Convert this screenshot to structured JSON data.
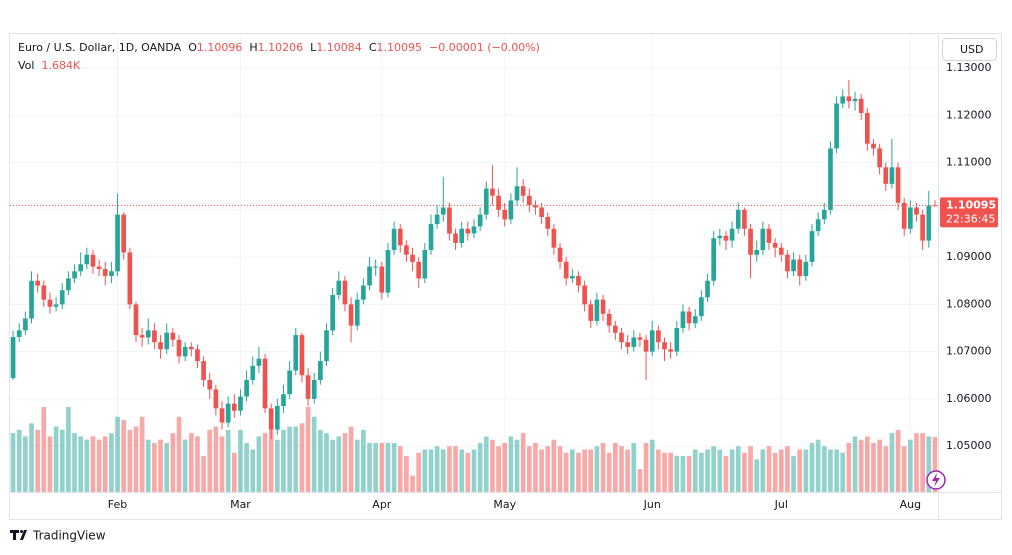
{
  "chart_data": {
    "type": "candlestick",
    "title": "Euro / U.S. Dollar, 1D, OANDA",
    "ohlc_prefixes": [
      "O",
      "H",
      "L",
      "C"
    ],
    "change_label": "−0.00001 (−0.00%)",
    "volume_title": "Vol",
    "volume_last_label": "1.684K",
    "currency": "USD",
    "countdown": "22:36:45",
    "branding": "TradingView",
    "up_color": "#26a69a",
    "down_color": "#ef5350",
    "grid": true,
    "ylim": [
      1.0403,
      1.137
    ],
    "yticks": [
      {
        "value": 1.05,
        "label": "1.05000"
      },
      {
        "value": 1.06,
        "label": "1.06000"
      },
      {
        "value": 1.07,
        "label": "1.07000"
      },
      {
        "value": 1.08,
        "label": "1.08000"
      },
      {
        "value": 1.09,
        "label": "1.09000"
      },
      {
        "value": 1.1,
        "label": "1.10000"
      },
      {
        "value": 1.11,
        "label": "1.11000"
      },
      {
        "value": 1.12,
        "label": "1.12000"
      },
      {
        "value": 1.13,
        "label": "1.13000"
      }
    ],
    "categories": [
      null,
      null,
      null,
      null,
      null,
      null,
      null,
      null,
      null,
      null,
      null,
      null,
      null,
      null,
      null,
      null,
      null,
      "Feb",
      null,
      null,
      null,
      null,
      null,
      null,
      null,
      null,
      null,
      null,
      null,
      null,
      null,
      null,
      null,
      null,
      null,
      null,
      null,
      "Mar",
      null,
      null,
      null,
      null,
      null,
      null,
      null,
      null,
      null,
      null,
      null,
      null,
      null,
      null,
      null,
      null,
      null,
      null,
      null,
      null,
      null,
      null,
      "Apr",
      null,
      null,
      null,
      null,
      null,
      null,
      null,
      null,
      null,
      null,
      null,
      null,
      null,
      null,
      null,
      null,
      null,
      null,
      null,
      "May",
      null,
      null,
      null,
      null,
      null,
      null,
      null,
      null,
      null,
      null,
      null,
      null,
      null,
      null,
      null,
      null,
      null,
      null,
      null,
      null,
      null,
      null,
      null,
      "Jun",
      null,
      null,
      null,
      null,
      null,
      null,
      null,
      null,
      null,
      null,
      null,
      null,
      null,
      null,
      null,
      null,
      null,
      null,
      null,
      null,
      "Jul",
      null,
      null,
      null,
      null,
      null,
      null,
      null,
      null,
      null,
      null,
      null,
      null,
      null,
      null,
      null,
      null,
      null,
      null,
      null,
      null,
      "Aug",
      null,
      null,
      null,
      null
    ],
    "open": [
      1.0644,
      1.0731,
      1.0745,
      1.077,
      1.085,
      1.084,
      1.081,
      1.0795,
      1.08,
      1.083,
      1.0855,
      1.087,
      1.0885,
      1.0905,
      1.088,
      1.0875,
      1.086,
      1.087,
      1.099,
      1.091,
      1.08,
      1.0735,
      1.073,
      1.0745,
      1.072,
      1.0705,
      1.074,
      1.0725,
      1.069,
      1.071,
      1.0705,
      1.068,
      1.064,
      1.062,
      1.058,
      1.055,
      1.059,
      1.0575,
      1.0605,
      1.064,
      1.067,
      1.0685,
      1.058,
      1.0535,
      1.0585,
      1.061,
      1.066,
      1.0735,
      1.065,
      1.06,
      1.064,
      1.068,
      1.0745,
      1.082,
      1.085,
      1.08,
      1.0755,
      1.081,
      1.084,
      1.088,
      1.088,
      1.0825,
      1.0915,
      1.096,
      1.0925,
      1.0905,
      1.089,
      1.0855,
      1.0915,
      1.097,
      1.099,
      1.1005,
      1.095,
      1.093,
      1.096,
      1.095,
      1.0965,
      1.099,
      1.1045,
      1.103,
      1.1,
      1.098,
      1.102,
      1.105,
      1.103,
      1.101,
      1.1005,
      1.0985,
      1.096,
      1.092,
      1.089,
      1.0855,
      1.086,
      1.084,
      1.08,
      1.0765,
      1.081,
      1.078,
      1.0755,
      1.074,
      1.072,
      1.071,
      1.073,
      1.0725,
      1.07,
      1.0745,
      1.072,
      1.0705,
      1.07,
      1.075,
      1.0785,
      1.076,
      1.0775,
      1.0815,
      1.085,
      1.094,
      1.0945,
      1.0935,
      1.096,
      1.1,
      1.096,
      1.0905,
      1.0915,
      1.096,
      1.093,
      1.092,
      1.0905,
      1.087,
      1.0895,
      1.086,
      1.089,
      1.0955,
      1.098,
      1.1,
      1.113,
      1.1225,
      1.124,
      1.123,
      1.1235,
      1.1205,
      1.114,
      1.113,
      1.109,
      1.1055,
      1.109,
      1.1015,
      1.096,
      1.1005,
      1.099,
      1.0935,
      1.10096
    ],
    "high": [
      1.0745,
      1.076,
      1.0785,
      1.087,
      1.0865,
      1.085,
      1.0825,
      1.0815,
      1.0845,
      1.087,
      1.0885,
      1.091,
      1.092,
      1.0915,
      1.0895,
      1.089,
      1.089,
      1.1035,
      1.0995,
      1.092,
      1.0805,
      1.075,
      1.077,
      1.076,
      1.0735,
      1.076,
      1.075,
      1.0735,
      1.072,
      1.072,
      1.0715,
      1.069,
      1.0655,
      1.063,
      1.0595,
      1.0605,
      1.061,
      1.062,
      1.066,
      1.069,
      1.071,
      1.0695,
      1.059,
      1.06,
      1.063,
      1.068,
      1.075,
      1.074,
      1.0665,
      1.0655,
      1.07,
      1.076,
      1.0835,
      1.087,
      1.086,
      1.0815,
      1.0825,
      1.0855,
      1.09,
      1.0895,
      1.089,
      1.093,
      1.0975,
      1.097,
      1.0935,
      1.092,
      1.09,
      1.093,
      1.099,
      1.101,
      1.107,
      1.1015,
      1.096,
      1.0975,
      1.0975,
      1.098,
      1.1005,
      1.106,
      1.1095,
      1.1045,
      1.1015,
      1.1035,
      1.109,
      1.1065,
      1.1045,
      1.102,
      1.1015,
      1.0995,
      1.097,
      1.093,
      1.09,
      1.0875,
      1.087,
      1.085,
      1.081,
      1.0825,
      1.082,
      1.079,
      1.0765,
      1.075,
      1.0735,
      1.0745,
      1.074,
      1.0735,
      1.0765,
      1.0755,
      1.073,
      1.072,
      1.0765,
      1.08,
      1.0795,
      1.079,
      1.083,
      1.0865,
      1.0955,
      1.096,
      1.0955,
      1.0975,
      1.1015,
      1.1005,
      1.097,
      1.0935,
      1.0975,
      1.097,
      1.094,
      1.093,
      1.0915,
      1.091,
      1.0905,
      1.0905,
      1.097,
      1.0995,
      1.1015,
      1.1145,
      1.124,
      1.1255,
      1.1275,
      1.125,
      1.1245,
      1.1215,
      1.115,
      1.114,
      1.11,
      1.115,
      1.11,
      1.1025,
      1.102,
      1.1015,
      1.1,
      1.104,
      1.10206
    ],
    "low": [
      1.064,
      1.072,
      1.0735,
      1.076,
      1.0825,
      1.0795,
      1.078,
      1.0785,
      1.079,
      1.082,
      1.0845,
      1.086,
      1.0875,
      1.0865,
      1.086,
      1.084,
      1.0845,
      1.086,
      1.0895,
      1.079,
      1.072,
      1.071,
      1.0715,
      1.0705,
      1.0685,
      1.0695,
      1.071,
      1.0675,
      1.068,
      1.069,
      1.0665,
      1.0625,
      1.06,
      1.0565,
      1.0535,
      1.054,
      1.056,
      1.0565,
      1.0595,
      1.063,
      1.0655,
      1.057,
      1.0515,
      1.0525,
      1.057,
      1.06,
      1.065,
      1.0635,
      1.0585,
      1.059,
      1.063,
      1.067,
      1.0735,
      1.081,
      1.0785,
      1.072,
      1.0745,
      1.08,
      1.083,
      1.086,
      1.081,
      1.0815,
      1.0905,
      1.091,
      1.089,
      1.087,
      1.0835,
      1.0845,
      1.0905,
      1.096,
      1.0975,
      1.0935,
      1.0915,
      1.092,
      1.0935,
      1.094,
      1.0955,
      1.098,
      1.101,
      1.0985,
      1.0965,
      1.097,
      1.101,
      1.1015,
      1.0995,
      1.099,
      1.097,
      1.0945,
      1.0905,
      1.0875,
      1.084,
      1.0845,
      1.0825,
      1.0785,
      1.075,
      1.0755,
      1.0765,
      1.074,
      1.0725,
      1.0705,
      1.0695,
      1.07,
      1.071,
      1.064,
      1.069,
      1.0705,
      1.068,
      1.0685,
      1.069,
      1.074,
      1.0745,
      1.075,
      1.0765,
      1.0805,
      1.084,
      1.0925,
      1.0915,
      1.092,
      1.095,
      1.0945,
      1.0855,
      1.089,
      1.0905,
      1.0915,
      1.09,
      1.089,
      1.0855,
      1.086,
      1.084,
      1.085,
      1.088,
      1.0945,
      1.097,
      1.099,
      1.112,
      1.1215,
      1.1215,
      1.121,
      1.119,
      1.1125,
      1.1115,
      1.1075,
      1.104,
      1.1045,
      1.1,
      1.0945,
      1.095,
      1.0975,
      1.0915,
      1.092,
      1.10084
    ],
    "close": [
      1.0731,
      1.0745,
      1.077,
      1.085,
      1.084,
      1.081,
      1.0795,
      1.08,
      1.083,
      1.0855,
      1.087,
      1.0885,
      1.0905,
      1.088,
      1.0875,
      1.086,
      1.087,
      1.099,
      1.091,
      1.08,
      1.0735,
      1.073,
      1.0745,
      1.072,
      1.0705,
      1.074,
      1.0725,
      1.069,
      1.071,
      1.0705,
      1.068,
      1.064,
      1.062,
      1.058,
      1.055,
      1.059,
      1.0575,
      1.0605,
      1.064,
      1.067,
      1.0685,
      1.058,
      1.0535,
      1.0585,
      1.061,
      1.066,
      1.0735,
      1.065,
      1.06,
      1.064,
      1.068,
      1.0745,
      1.082,
      1.085,
      1.08,
      1.0755,
      1.081,
      1.084,
      1.088,
      1.088,
      1.0825,
      1.0915,
      1.096,
      1.0925,
      1.0905,
      1.089,
      1.0855,
      1.0915,
      1.097,
      1.099,
      1.1005,
      1.095,
      1.093,
      1.096,
      1.095,
      1.0965,
      1.099,
      1.1045,
      1.103,
      1.1,
      1.098,
      1.102,
      1.105,
      1.103,
      1.101,
      1.1005,
      1.0985,
      1.096,
      1.092,
      1.089,
      1.0855,
      1.086,
      1.084,
      1.08,
      1.0765,
      1.081,
      1.078,
      1.0755,
      1.074,
      1.072,
      1.071,
      1.073,
      1.0725,
      1.07,
      1.0745,
      1.072,
      1.0705,
      1.07,
      1.075,
      1.0785,
      1.076,
      1.0775,
      1.0815,
      1.085,
      1.094,
      1.0945,
      1.0935,
      1.096,
      1.1,
      1.096,
      1.0905,
      1.0915,
      1.096,
      1.093,
      1.092,
      1.0905,
      1.087,
      1.0895,
      1.086,
      1.089,
      1.0955,
      1.098,
      1.1,
      1.113,
      1.1225,
      1.124,
      1.123,
      1.1235,
      1.1205,
      1.114,
      1.113,
      1.109,
      1.1055,
      1.109,
      1.1015,
      1.096,
      1.1005,
      1.099,
      1.0935,
      1.1009,
      1.10095
    ],
    "volume": [
      1.8,
      1.9,
      1.7,
      2.1,
      1.9,
      2.6,
      1.7,
      2.0,
      1.9,
      2.6,
      1.8,
      1.7,
      1.6,
      1.7,
      1.6,
      1.7,
      1.8,
      2.3,
      2.2,
      1.9,
      2.0,
      2.3,
      1.6,
      1.5,
      1.6,
      1.5,
      1.8,
      2.3,
      1.6,
      1.8,
      1.7,
      1.1,
      1.9,
      2.0,
      1.7,
      1.9,
      1.2,
      1.9,
      1.5,
      1.3,
      1.7,
      1.8,
      1.9,
      1.6,
      1.9,
      2.0,
      2.0,
      2.1,
      2.6,
      2.3,
      1.9,
      1.8,
      1.6,
      1.7,
      1.8,
      2.0,
      1.6,
      1.9,
      1.5,
      1.5,
      1.5,
      1.5,
      1.5,
      1.4,
      1.1,
      0.5,
      1.2,
      1.3,
      1.3,
      1.4,
      1.3,
      1.4,
      1.4,
      1.3,
      1.2,
      1.3,
      1.5,
      1.7,
      1.6,
      1.4,
      1.5,
      1.7,
      1.6,
      1.8,
      1.4,
      1.5,
      1.3,
      1.4,
      1.6,
      1.4,
      1.2,
      1.3,
      1.2,
      1.3,
      1.3,
      1.4,
      1.5,
      1.2,
      1.5,
      1.4,
      1.3,
      1.5,
      0.7,
      1.5,
      1.6,
      1.3,
      1.2,
      1.2,
      1.1,
      1.1,
      1.1,
      1.3,
      1.2,
      1.3,
      1.4,
      1.3,
      1.1,
      1.3,
      1.4,
      1.2,
      1.4,
      1.0,
      1.3,
      1.4,
      1.2,
      1.3,
      1.4,
      1.1,
      1.3,
      1.3,
      1.5,
      1.6,
      1.4,
      1.3,
      1.3,
      1.2,
      1.5,
      1.7,
      1.6,
      1.7,
      1.5,
      1.6,
      1.4,
      1.8,
      1.9,
      1.4,
      1.6,
      1.8,
      1.8,
      1.7,
      1.684
    ]
  }
}
